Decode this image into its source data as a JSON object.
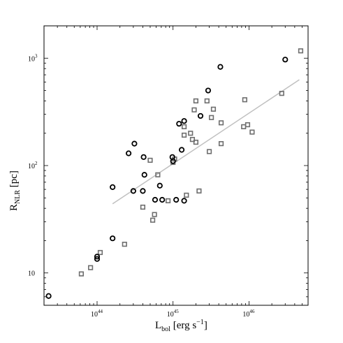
{
  "chart_data": {
    "type": "scatter",
    "title": "",
    "xlabel": {
      "main": "L",
      "sub": "bol",
      "rest": " [erg s",
      "sup": "−1",
      "end": "]"
    },
    "ylabel": {
      "main": "R",
      "sub": "NLR",
      "rest": " [pc]"
    },
    "xscale": "log",
    "yscale": "log",
    "xlim": [
      2e+43,
      6e+46
    ],
    "ylim": [
      5.0,
      2000
    ],
    "grid": false,
    "legend": "none",
    "x_ticks": [
      {
        "value": 1e+44,
        "base": "10",
        "exp": "44"
      },
      {
        "value": 1e+45,
        "base": "10",
        "exp": "45"
      },
      {
        "value": 1e+46,
        "base": "10",
        "exp": "46"
      }
    ],
    "y_ticks": [
      {
        "value": 10,
        "base": "10",
        "exp": ""
      },
      {
        "value": 100,
        "base": "10",
        "exp": "2"
      },
      {
        "value": 1000,
        "base": "10",
        "exp": "3"
      }
    ],
    "series": [
      {
        "marker": "circle",
        "color": "#000000",
        "points": [
          [
            2.3e+43,
            6.1
          ],
          [
            1e+44,
            13.5
          ],
          [
            1e+44,
            14.2
          ],
          [
            1.6e+44,
            21
          ],
          [
            1.6e+44,
            63
          ],
          [
            2.6e+44,
            130
          ],
          [
            3e+44,
            58
          ],
          [
            3.1e+44,
            160
          ],
          [
            4e+44,
            58
          ],
          [
            4.1e+44,
            120
          ],
          [
            4.2e+44,
            82
          ],
          [
            5.8e+44,
            48
          ],
          [
            6.7e+44,
            65
          ],
          [
            7.2e+44,
            48
          ],
          [
            9.8e+44,
            120
          ],
          [
            1e+45,
            110
          ],
          [
            1.1e+45,
            48
          ],
          [
            1.2e+45,
            245
          ],
          [
            1.3e+45,
            140
          ],
          [
            1.4e+45,
            47
          ],
          [
            1.4e+45,
            260
          ],
          [
            2.3e+45,
            290
          ],
          [
            2.9e+45,
            500
          ],
          [
            4.2e+45,
            830
          ],
          [
            3e+46,
            970
          ]
        ]
      },
      {
        "marker": "square",
        "color": "#6e6e6e",
        "points": [
          [
            6.2e+43,
            9.8
          ],
          [
            8.2e+43,
            11.2
          ],
          [
            1.1e+44,
            15.5
          ],
          [
            2.3e+44,
            18.5
          ],
          [
            4e+44,
            41
          ],
          [
            5e+44,
            112
          ],
          [
            5.4e+44,
            31
          ],
          [
            5.7e+44,
            35
          ],
          [
            6.3e+44,
            82
          ],
          [
            8.6e+44,
            47
          ],
          [
            1e+45,
            107
          ],
          [
            1.05e+45,
            115
          ],
          [
            1.4e+45,
            192
          ],
          [
            1.4e+45,
            230
          ],
          [
            1.5e+45,
            53
          ],
          [
            1.7e+45,
            200
          ],
          [
            1.8e+45,
            175
          ],
          [
            1.9e+45,
            330
          ],
          [
            2e+45,
            165
          ],
          [
            2e+45,
            400
          ],
          [
            2.2e+45,
            58
          ],
          [
            2.8e+45,
            400
          ],
          [
            3e+45,
            135
          ],
          [
            3.2e+45,
            280
          ],
          [
            3.4e+45,
            335
          ],
          [
            4.3e+45,
            250
          ],
          [
            4.3e+45,
            160
          ],
          [
            8.5e+45,
            230
          ],
          [
            8.8e+45,
            410
          ],
          [
            9.6e+45,
            240
          ],
          [
            1.1e+46,
            205
          ],
          [
            2.7e+46,
            470
          ],
          [
            4.8e+46,
            1170
          ]
        ]
      }
    ],
    "fit_line": {
      "color": "#c0c0c0",
      "x": [
        1.6e+44,
        4.6e+46
      ],
      "y": [
        44,
        630
      ]
    }
  }
}
